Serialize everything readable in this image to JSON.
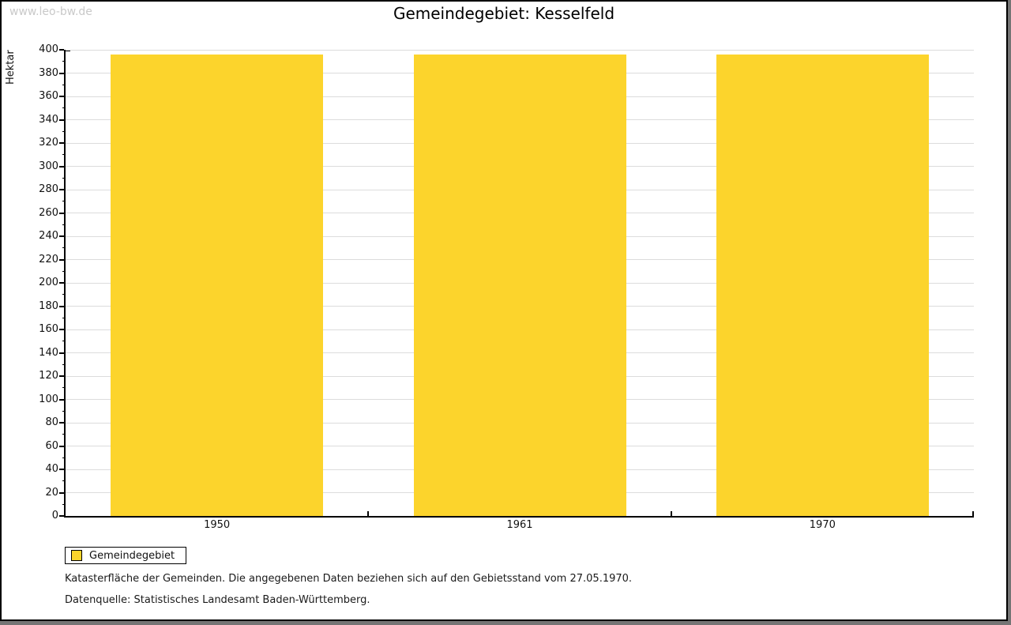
{
  "window": {
    "watermark": "www.leo-bw.de"
  },
  "legend": {
    "label": "Gemeindegebiet"
  },
  "footer": {
    "line1": "Katasterfläche der Gemeinden. Die angegebenen Daten beziehen sich auf den Gebietsstand vom 27.05.1970.",
    "line2": "Datenquelle: Statistisches Landesamt Baden-Württemberg."
  },
  "colors": {
    "bar": "#fcd42c",
    "grid": "#dcdcdc",
    "axis": "#000000",
    "watermark": "#c9c9c9",
    "frame_background": "#757575"
  },
  "chart_data": {
    "type": "bar",
    "title": "Gemeindegebiet: Kesselfeld",
    "categories": [
      "1950",
      "1961",
      "1970"
    ],
    "series": [
      {
        "name": "Gemeindegebiet",
        "values": [
          396,
          396,
          396
        ],
        "color": "#fcd42c"
      }
    ],
    "xlabel": "",
    "ylabel": "Hektar",
    "ylim": [
      0,
      400
    ],
    "ytick_major": 20,
    "ytick_minor": 10,
    "grid": true,
    "legend_position": "bottom-left"
  }
}
